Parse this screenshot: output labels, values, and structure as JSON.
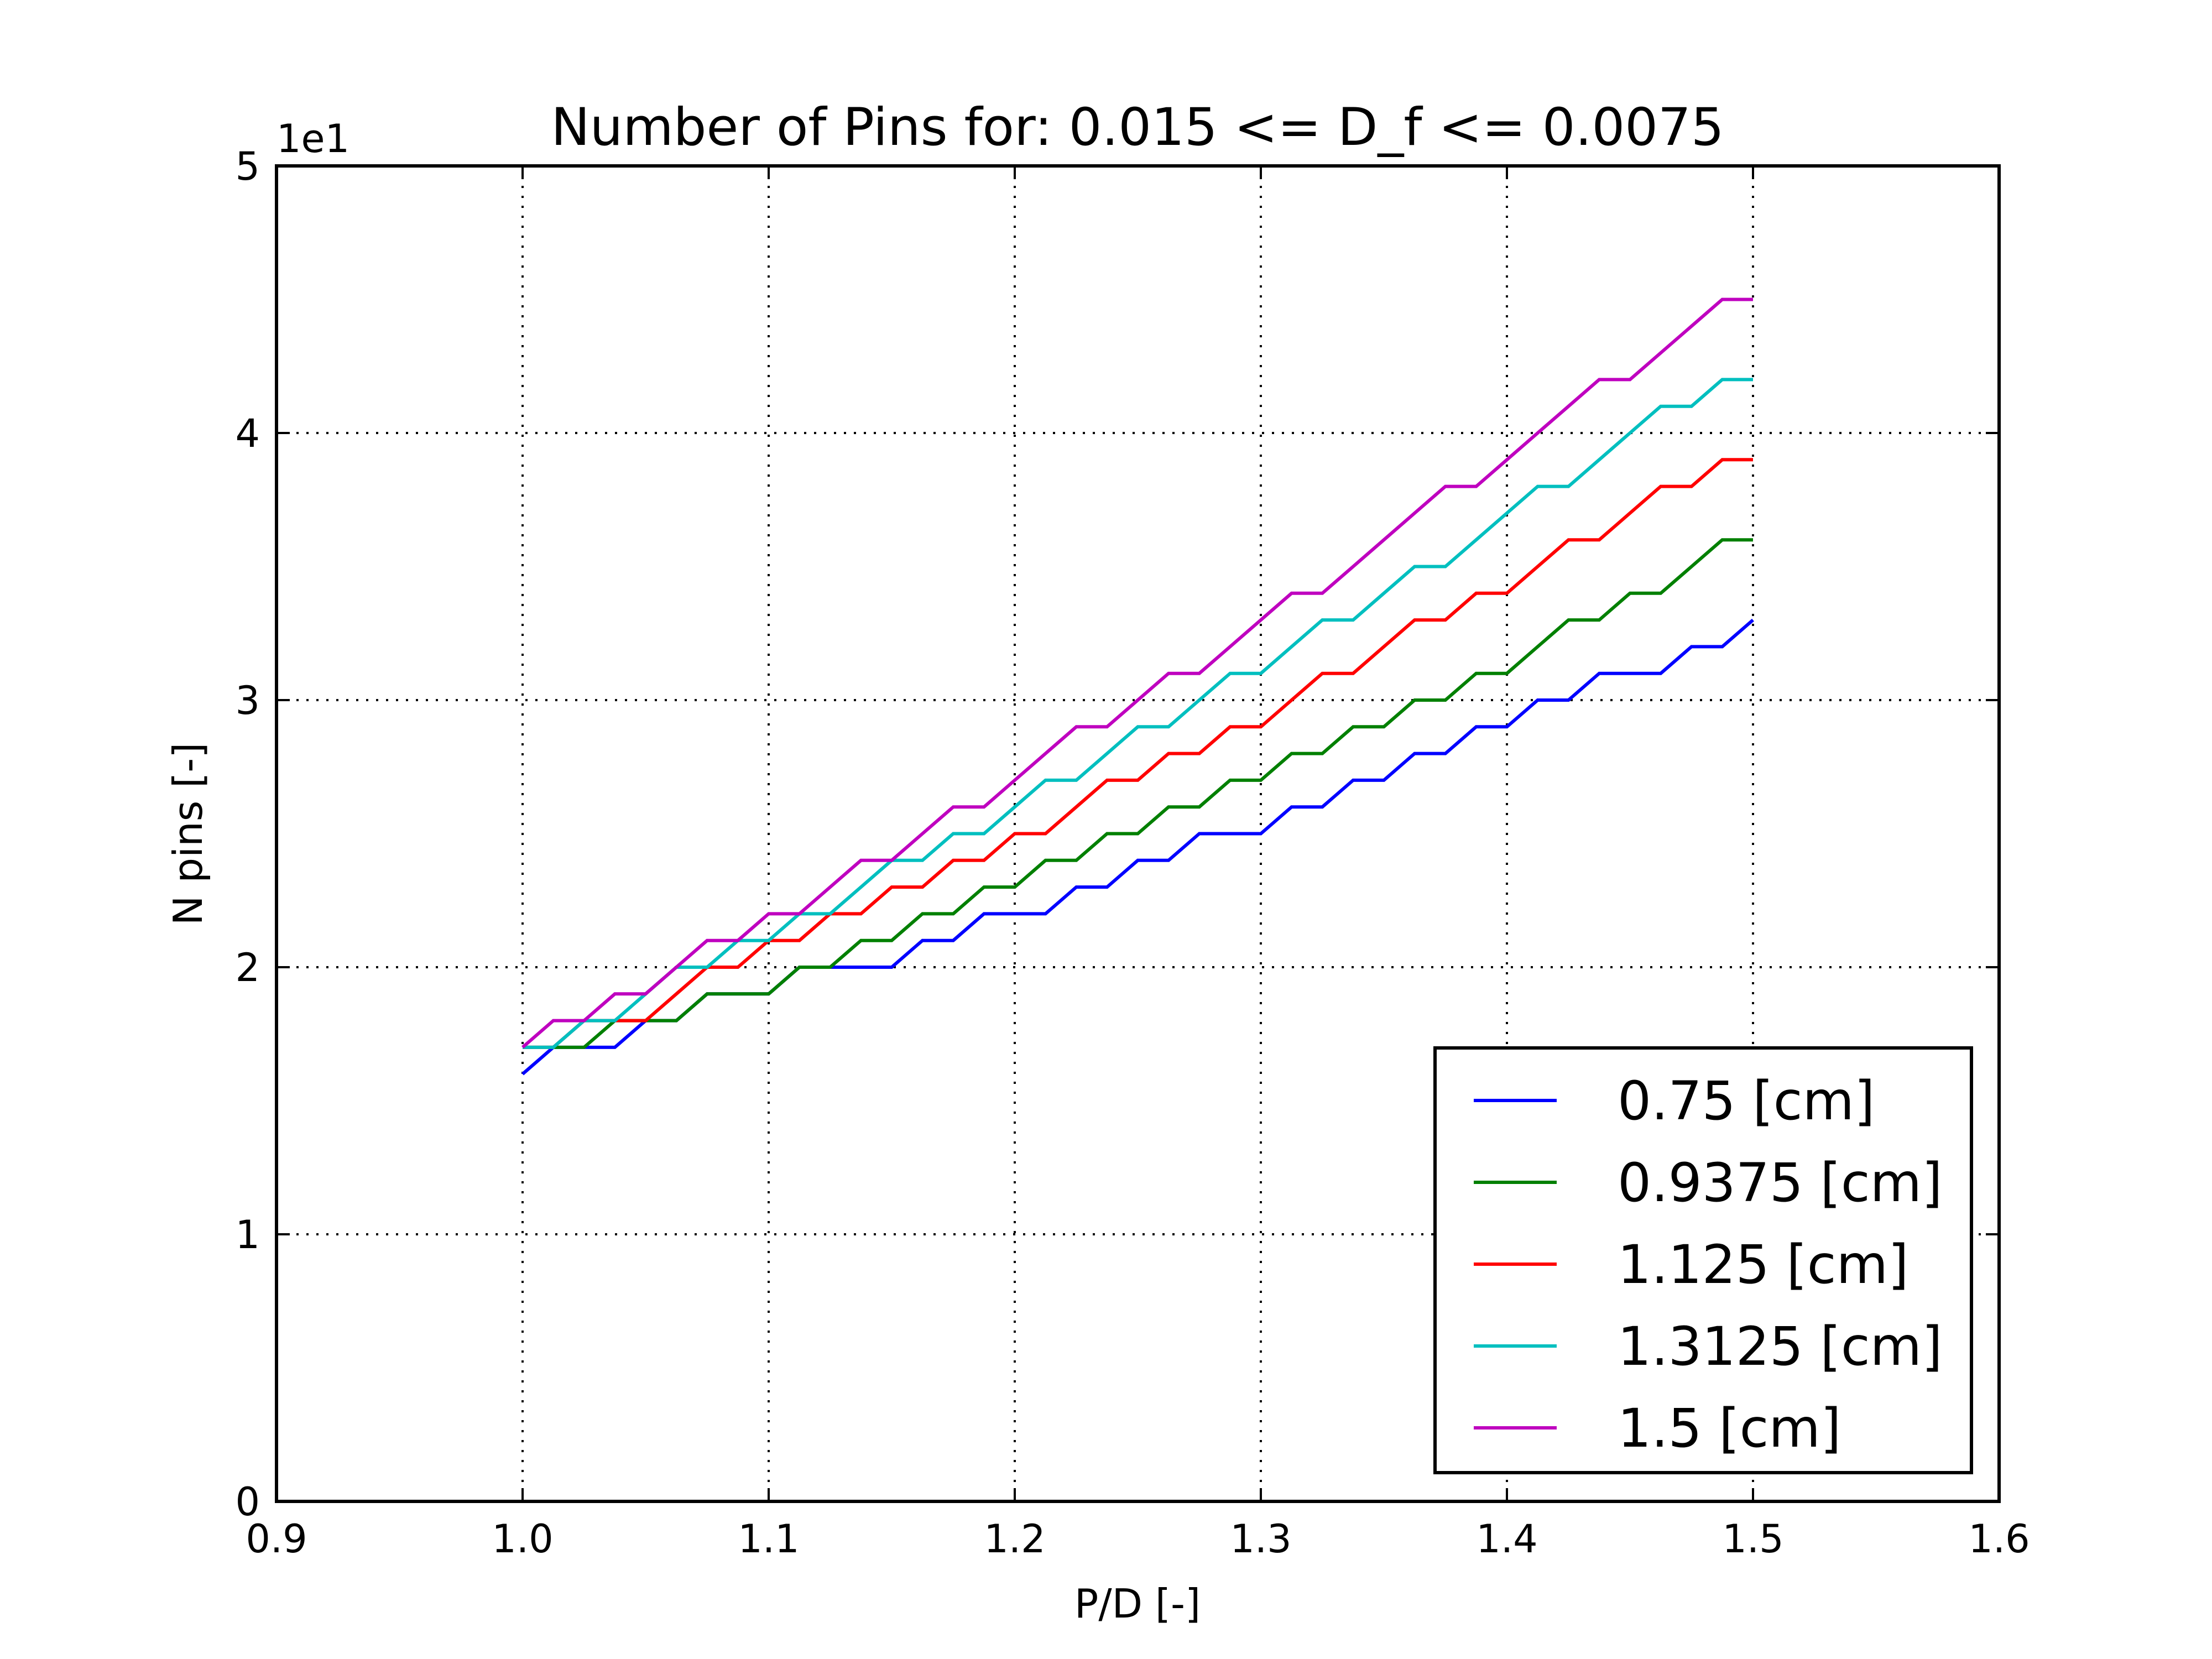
{
  "chart_data": {
    "type": "line",
    "title": "Number of Pins for: 0.015 <= D_f <= 0.0075",
    "xlabel": "P/D [-]",
    "ylabel": "N pins [-]",
    "y_offset_label": "1e1",
    "xlim": [
      0.9,
      1.6
    ],
    "ylim": [
      0,
      5
    ],
    "xticks": [
      0.9,
      1.0,
      1.1,
      1.2,
      1.3,
      1.4,
      1.5,
      1.6
    ],
    "xtick_labels": [
      "0.9",
      "1.0",
      "1.1",
      "1.2",
      "1.3",
      "1.4",
      "1.5",
      "1.6"
    ],
    "yticks": [
      0,
      1,
      2,
      3,
      4,
      5
    ],
    "ytick_labels": [
      "0",
      "1",
      "2",
      "3",
      "4",
      "5"
    ],
    "grid": true,
    "legend_position": "bottom-right",
    "x": [
      1.0,
      1.0125,
      1.025,
      1.0375,
      1.05,
      1.0625,
      1.075,
      1.0875,
      1.1,
      1.1125,
      1.125,
      1.1375,
      1.15,
      1.1625,
      1.175,
      1.1875,
      1.2,
      1.2125,
      1.225,
      1.2375,
      1.25,
      1.2625,
      1.275,
      1.2875,
      1.3,
      1.3125,
      1.325,
      1.3375,
      1.35,
      1.3625,
      1.375,
      1.3875,
      1.4,
      1.4125,
      1.425,
      1.4375,
      1.45,
      1.4625,
      1.475,
      1.4875,
      1.5
    ],
    "series": [
      {
        "name": "0.75 [cm]",
        "color": "#0000ff",
        "values": [
          1.6,
          1.7,
          1.7,
          1.7,
          1.8,
          1.8,
          1.9,
          1.9,
          1.9,
          2.0,
          2.0,
          2.0,
          2.0,
          2.1,
          2.1,
          2.2,
          2.2,
          2.2,
          2.3,
          2.3,
          2.4,
          2.4,
          2.5,
          2.5,
          2.5,
          2.6,
          2.6,
          2.7,
          2.7,
          2.8,
          2.8,
          2.9,
          2.9,
          3.0,
          3.0,
          3.1,
          3.1,
          3.1,
          3.2,
          3.2,
          3.3
        ]
      },
      {
        "name": "0.9375 [cm]",
        "color": "#008000",
        "values": [
          1.7,
          1.7,
          1.7,
          1.8,
          1.8,
          1.8,
          1.9,
          1.9,
          1.9,
          2.0,
          2.0,
          2.1,
          2.1,
          2.2,
          2.2,
          2.3,
          2.3,
          2.4,
          2.4,
          2.5,
          2.5,
          2.6,
          2.6,
          2.7,
          2.7,
          2.8,
          2.8,
          2.9,
          2.9,
          3.0,
          3.0,
          3.1,
          3.1,
          3.2,
          3.3,
          3.3,
          3.4,
          3.4,
          3.5,
          3.6,
          3.6
        ]
      },
      {
        "name": "1.125 [cm]",
        "color": "#ff0000",
        "values": [
          1.7,
          1.7,
          1.8,
          1.8,
          1.8,
          1.9,
          2.0,
          2.0,
          2.1,
          2.1,
          2.2,
          2.2,
          2.3,
          2.3,
          2.4,
          2.4,
          2.5,
          2.5,
          2.6,
          2.7,
          2.7,
          2.8,
          2.8,
          2.9,
          2.9,
          3.0,
          3.1,
          3.1,
          3.2,
          3.3,
          3.3,
          3.4,
          3.4,
          3.5,
          3.6,
          3.6,
          3.7,
          3.8,
          3.8,
          3.9,
          3.9
        ]
      },
      {
        "name": "1.3125 [cm]",
        "color": "#00bfbf",
        "values": [
          1.7,
          1.7,
          1.8,
          1.8,
          1.9,
          2.0,
          2.0,
          2.1,
          2.1,
          2.2,
          2.2,
          2.3,
          2.4,
          2.4,
          2.5,
          2.5,
          2.6,
          2.7,
          2.7,
          2.8,
          2.9,
          2.9,
          3.0,
          3.1,
          3.1,
          3.2,
          3.3,
          3.3,
          3.4,
          3.5,
          3.5,
          3.6,
          3.7,
          3.8,
          3.8,
          3.9,
          4.0,
          4.1,
          4.1,
          4.2,
          4.2
        ]
      },
      {
        "name": "1.5 [cm]",
        "color": "#bf00bf",
        "values": [
          1.7,
          1.8,
          1.8,
          1.9,
          1.9,
          2.0,
          2.1,
          2.1,
          2.2,
          2.2,
          2.3,
          2.4,
          2.4,
          2.5,
          2.6,
          2.6,
          2.7,
          2.8,
          2.9,
          2.9,
          3.0,
          3.1,
          3.1,
          3.2,
          3.3,
          3.4,
          3.4,
          3.5,
          3.6,
          3.7,
          3.8,
          3.8,
          3.9,
          4.0,
          4.1,
          4.2,
          4.2,
          4.3,
          4.4,
          4.5,
          4.5
        ]
      }
    ]
  }
}
